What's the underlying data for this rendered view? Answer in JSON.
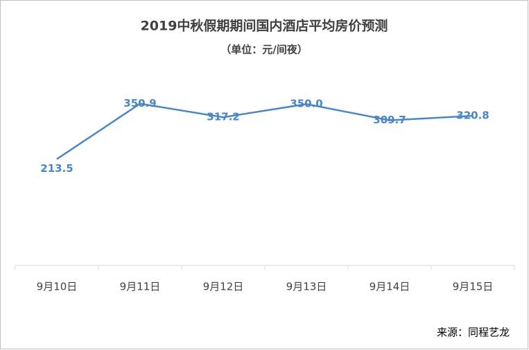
{
  "chart_data": {
    "type": "line",
    "title": "2019中秋假期期间国内酒店平均房价预测",
    "subtitle": "（单位：元/间夜）",
    "source": "来源：同程艺龙",
    "categories": [
      "9月10日",
      "9月11日",
      "9月12日",
      "9月13日",
      "9月14日",
      "9月15日"
    ],
    "values": [
      213.5,
      350.9,
      317.2,
      350,
      309.7,
      320.8
    ],
    "value_labels": [
      "213.5",
      "350.9",
      "317.2",
      "350.0",
      "309.7",
      "320.8"
    ],
    "color": "#4a86c5",
    "ylim": [
      -50,
      400
    ]
  }
}
